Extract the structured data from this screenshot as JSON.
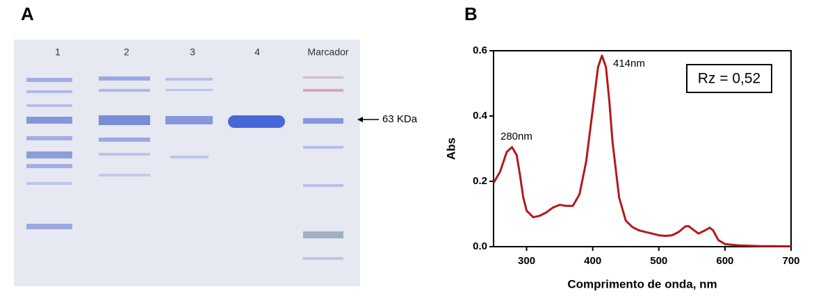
{
  "panels": [
    "A",
    "B"
  ],
  "gel": {
    "lanes": [
      "1",
      "2",
      "3",
      "4",
      "Marcador"
    ],
    "marker_label": "63 KDa"
  },
  "chart_data": {
    "type": "line",
    "x_label": "Comprimento de onda, nm",
    "y_label": "Abs",
    "annotations": [
      "414nm",
      "280nm",
      "Rz = 0,52"
    ],
    "x": [
      250,
      260,
      270,
      278,
      285,
      290,
      295,
      300,
      310,
      320,
      330,
      340,
      350,
      360,
      370,
      380,
      390,
      400,
      408,
      414,
      420,
      425,
      430,
      440,
      450,
      460,
      470,
      480,
      490,
      500,
      510,
      520,
      530,
      540,
      545,
      550,
      560,
      570,
      577,
      582,
      590,
      600,
      620,
      650,
      700
    ],
    "series": [
      {
        "name": "Abs",
        "color": "#b3191b",
        "values": [
          0.195,
          0.23,
          0.29,
          0.305,
          0.28,
          0.22,
          0.15,
          0.11,
          0.09,
          0.095,
          0.105,
          0.12,
          0.128,
          0.125,
          0.125,
          0.16,
          0.26,
          0.42,
          0.55,
          0.585,
          0.55,
          0.45,
          0.32,
          0.15,
          0.08,
          0.06,
          0.05,
          0.045,
          0.04,
          0.035,
          0.033,
          0.035,
          0.045,
          0.062,
          0.063,
          0.055,
          0.04,
          0.05,
          0.058,
          0.05,
          0.02,
          0.008,
          0.004,
          0.002,
          0.001
        ]
      }
    ],
    "xlim": [
      250,
      700
    ],
    "xticks": [
      300,
      400,
      500,
      600,
      700
    ],
    "ylim": [
      0,
      0.6
    ],
    "yticks": [
      {
        "value": 0,
        "label": "0.0"
      },
      {
        "value": 0.2,
        "label": "0.2"
      },
      {
        "value": 0.4,
        "label": "0.4"
      },
      {
        "value": 0.6,
        "label": "0.6"
      }
    ]
  }
}
